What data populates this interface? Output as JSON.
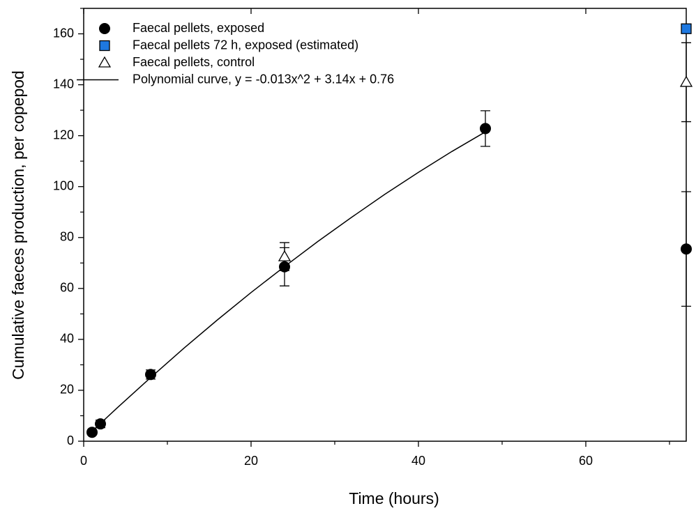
{
  "chart_data": {
    "type": "scatter",
    "x_label": "Time (hours)",
    "y_label": "Cumulative faeces production, per copepod",
    "xlim": [
      0,
      72
    ],
    "ylim": [
      0,
      170
    ],
    "xticks": [
      0,
      20,
      40,
      60
    ],
    "yticks": [
      0,
      20,
      40,
      60,
      80,
      100,
      120,
      140,
      160
    ],
    "xminorticks": [
      10,
      30,
      50,
      70
    ],
    "yminorticks": [
      10,
      30,
      50,
      70,
      90,
      110,
      130,
      150,
      170
    ],
    "legend": "upper left",
    "series": [
      {
        "name": "Faecal pellets, exposed",
        "marker": "circle",
        "color": "#000000",
        "x": [
          1,
          2,
          8,
          24,
          48,
          72
        ],
        "values": [
          3.5,
          6.8,
          26.2,
          68.5,
          122.8,
          75.5
        ],
        "errors": [
          1,
          1.5,
          1.8,
          7.5,
          7,
          22.5
        ]
      },
      {
        "name": "Faecal pellets 72 h, exposed (estimated)",
        "marker": "square",
        "color": "#1e78e0",
        "x": [
          72
        ],
        "values": [
          162
        ]
      },
      {
        "name": "Faecal pellets, control",
        "marker": "triangle",
        "color": "#ffffff",
        "x": [
          24,
          72
        ],
        "values": [
          72.5,
          141
        ],
        "errors": [
          5.5,
          15.5
        ]
      },
      {
        "name": "Polynomial curve, y = -0.013x^2 + 3.14x + 0.76",
        "marker": "line",
        "color": "#000000",
        "x": [
          1,
          4,
          8,
          12,
          16,
          20,
          24,
          28,
          32,
          36,
          40,
          44,
          48
        ],
        "values": [
          3.9,
          13.1,
          25.0,
          36.6,
          47.7,
          58.4,
          68.6,
          78.5,
          87.9,
          97.0,
          105.6,
          113.8,
          121.5
        ]
      }
    ]
  }
}
